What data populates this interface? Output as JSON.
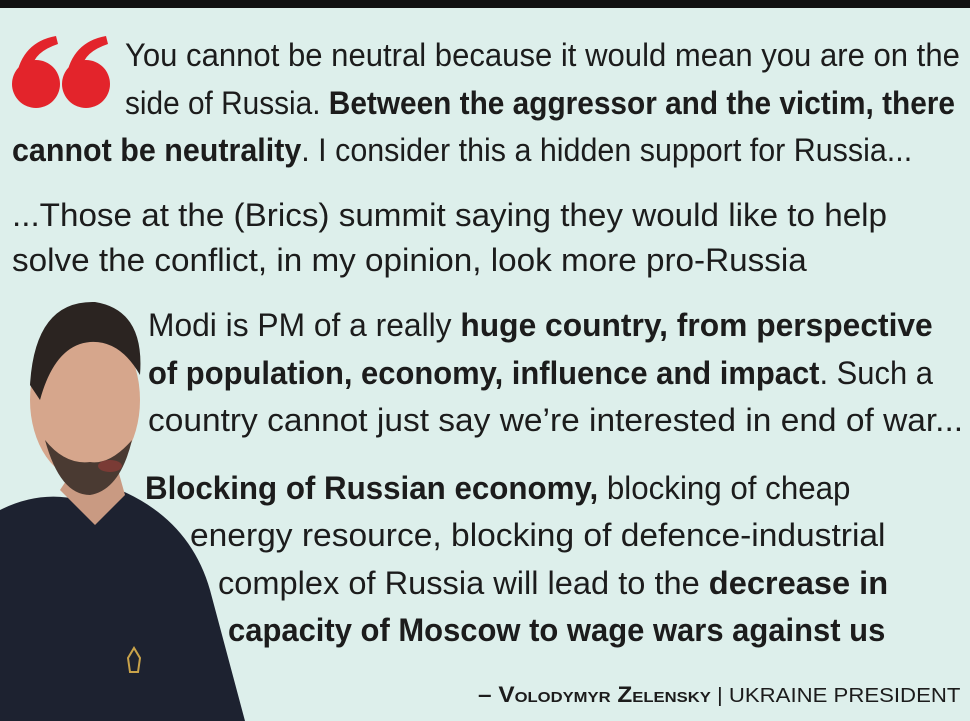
{
  "quotes": [
    {
      "lines": [
        [
          {
            "text": "You cannot be neutral because it would mean you are on the",
            "bold": false
          }
        ],
        [
          {
            "text": "side of Russia. ",
            "bold": false
          },
          {
            "text": "Between the aggressor and the victim, there",
            "bold": true
          }
        ],
        [
          {
            "text": "cannot be neutrality",
            "bold": true
          },
          {
            "text": ". I consider this a hidden support for Russia...",
            "bold": false
          }
        ]
      ]
    },
    {
      "lines": [
        [
          {
            "text": "...Those at the (Brics) summit saying they would like to help",
            "bold": false
          }
        ],
        [
          {
            "text": "solve the conflict, in my opinion, look more pro-Russia",
            "bold": false
          }
        ]
      ]
    },
    {
      "lines": [
        [
          {
            "text": "Modi is PM of a really ",
            "bold": false
          },
          {
            "text": "huge country, from perspective",
            "bold": true
          }
        ],
        [
          {
            "text": "of population, economy, influence and impact",
            "bold": true
          },
          {
            "text": ". Such a",
            "bold": false
          }
        ],
        [
          {
            "text": "country cannot just say we’re interested in end of war...",
            "bold": false
          }
        ]
      ]
    },
    {
      "lines": [
        [
          {
            "text": "Blocking of Russian economy,",
            "bold": true
          },
          {
            "text": " blocking of cheap",
            "bold": false
          }
        ],
        [
          {
            "text": "energy resource, blocking of defence-industrial",
            "bold": false
          }
        ],
        [
          {
            "text": "complex of Russia will lead to the ",
            "bold": false
          },
          {
            "text": "decrease in",
            "bold": true
          }
        ],
        [
          {
            "text": "capacity of Moscow to wage wars against us",
            "bold": true
          }
        ]
      ]
    }
  ],
  "attribution": {
    "name": "– Volodymyr Zelensky",
    "separator": "|",
    "role": "UKRAINE PRESIDENT"
  }
}
